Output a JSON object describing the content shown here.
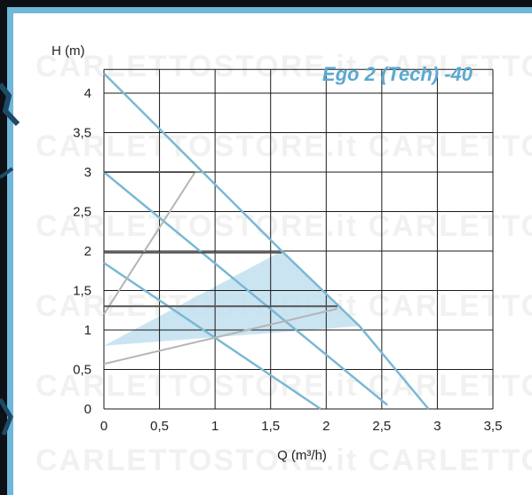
{
  "chart_data": {
    "type": "line",
    "title": "Ego 2 (Tech) -40",
    "xlabel": "Q (m³/h)",
    "ylabel": "H (m)",
    "xlim": [
      0,
      3.5
    ],
    "ylim": [
      0,
      4.3
    ],
    "x_ticks": [
      "0",
      "0,5",
      "1",
      "1,5",
      "2",
      "2,5",
      "3",
      "3,5"
    ],
    "y_ticks": [
      "0",
      "0,5",
      "1",
      "1,5",
      "2",
      "2,5",
      "3",
      "3,5",
      "4"
    ],
    "grid": true,
    "watermark": "CARLETTOSTORE.it",
    "colors": {
      "curve": "#7ab8d4",
      "system": "#b5b5b5",
      "area": "#c2dff0",
      "grid": "#1a1a1a",
      "title": "#5aa8d2",
      "frame": "#6fb8dc"
    },
    "series": [
      {
        "values": [
          [
            0,
            4.25
          ],
          [
            1.6,
            2.0
          ],
          [
            2.3,
            1.05
          ],
          [
            2.92,
            0
          ]
        ]
      },
      {
        "values": [
          [
            0,
            3.0
          ],
          [
            2.55,
            0.05
          ]
        ]
      },
      {
        "values": [
          [
            0,
            1.85
          ],
          [
            1.95,
            0
          ]
        ]
      },
      {
        "values": [
          [
            0,
            1.2
          ],
          [
            0.82,
            3.0
          ]
        ]
      },
      {
        "values": [
          [
            0,
            0.57
          ],
          [
            2.1,
            1.27
          ]
        ]
      }
    ],
    "shaded_area": [
      [
        0,
        0.8
      ],
      [
        1.6,
        2.0
      ],
      [
        2.3,
        1.05
      ]
    ],
    "marker_lines": [
      {
        "y": 3.0,
        "x": [
          0,
          0.82
        ]
      },
      {
        "y": 1.98,
        "x": [
          0,
          1.6
        ]
      },
      {
        "y": 1.3,
        "x": [
          0,
          2.1
        ]
      }
    ]
  }
}
